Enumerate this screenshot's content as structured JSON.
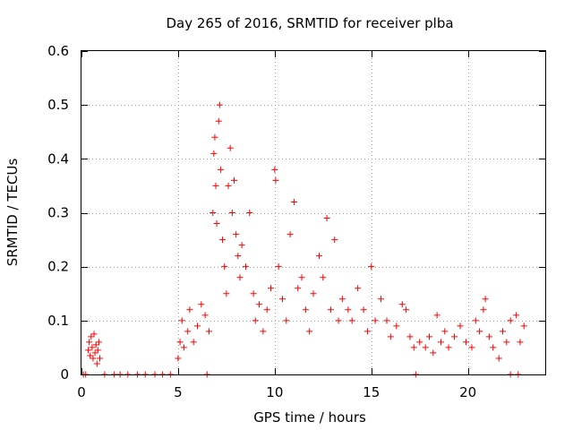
{
  "chart_data": {
    "type": "scatter",
    "title": "Day 265 of 2016, SRMTID for receiver plba",
    "xlabel": "GPS time / hours",
    "ylabel": "SRMTID / TECUs",
    "xlim": [
      0,
      24
    ],
    "ylim": [
      0,
      0.6
    ],
    "grid": true,
    "marker": "+",
    "color": "#ff0000",
    "x_ticks": [
      0,
      5,
      10,
      15,
      20
    ],
    "x_tick_labels": [
      "0",
      "5",
      "10",
      "15",
      "20"
    ],
    "y_ticks": [
      0,
      0.1,
      0.2,
      0.3,
      0.4,
      0.5,
      0.6
    ],
    "y_tick_labels": [
      "0",
      "0.1",
      "0.2",
      "0.3",
      "0.4",
      "0.5",
      "0.6"
    ],
    "series": [
      {
        "name": "SRMTID",
        "points": [
          [
            0.1,
            0
          ],
          [
            0.22,
            0
          ],
          [
            0.35,
            0.045
          ],
          [
            0.4,
            0.06
          ],
          [
            0.45,
            0.035
          ],
          [
            0.5,
            0.07
          ],
          [
            0.55,
            0.05
          ],
          [
            0.6,
            0.03
          ],
          [
            0.65,
            0.075
          ],
          [
            0.7,
            0.04
          ],
          [
            0.75,
            0.055
          ],
          [
            0.8,
            0.02
          ],
          [
            0.85,
            0.045
          ],
          [
            0.9,
            0.06
          ],
          [
            0.95,
            0.03
          ],
          [
            1.2,
            0
          ],
          [
            1.7,
            0
          ],
          [
            2.0,
            0
          ],
          [
            2.4,
            0
          ],
          [
            2.9,
            0
          ],
          [
            3.3,
            0
          ],
          [
            3.8,
            0
          ],
          [
            4.2,
            0
          ],
          [
            4.6,
            0
          ],
          [
            5.0,
            0.03
          ],
          [
            5.1,
            0.06
          ],
          [
            5.2,
            0.1
          ],
          [
            5.3,
            0.05
          ],
          [
            5.5,
            0.08
          ],
          [
            5.6,
            0.12
          ],
          [
            5.8,
            0.06
          ],
          [
            6.0,
            0.09
          ],
          [
            6.2,
            0.13
          ],
          [
            6.4,
            0.11
          ],
          [
            6.6,
            0.08
          ],
          [
            6.5,
            0
          ],
          [
            6.8,
            0.3
          ],
          [
            6.85,
            0.41
          ],
          [
            6.9,
            0.44
          ],
          [
            6.95,
            0.35
          ],
          [
            7.0,
            0.28
          ],
          [
            7.1,
            0.47
          ],
          [
            7.15,
            0.5
          ],
          [
            7.2,
            0.38
          ],
          [
            7.3,
            0.25
          ],
          [
            7.4,
            0.2
          ],
          [
            7.5,
            0.15
          ],
          [
            7.6,
            0.35
          ],
          [
            7.7,
            0.42
          ],
          [
            7.8,
            0.3
          ],
          [
            7.9,
            0.36
          ],
          [
            8.0,
            0.26
          ],
          [
            8.1,
            0.22
          ],
          [
            8.2,
            0.18
          ],
          [
            8.3,
            0.24
          ],
          [
            8.5,
            0.2
          ],
          [
            8.7,
            0.3
          ],
          [
            8.9,
            0.15
          ],
          [
            9.0,
            0.1
          ],
          [
            9.2,
            0.13
          ],
          [
            9.4,
            0.08
          ],
          [
            9.6,
            0.12
          ],
          [
            9.8,
            0.16
          ],
          [
            10.0,
            0.38
          ],
          [
            10.05,
            0.36
          ],
          [
            10.2,
            0.2
          ],
          [
            10.4,
            0.14
          ],
          [
            10.6,
            0.1
          ],
          [
            10.8,
            0.26
          ],
          [
            11.0,
            0.32
          ],
          [
            11.2,
            0.16
          ],
          [
            11.4,
            0.18
          ],
          [
            11.6,
            0.12
          ],
          [
            11.8,
            0.08
          ],
          [
            12.0,
            0.15
          ],
          [
            12.3,
            0.22
          ],
          [
            12.5,
            0.18
          ],
          [
            12.7,
            0.29
          ],
          [
            12.9,
            0.12
          ],
          [
            13.1,
            0.25
          ],
          [
            13.3,
            0.1
          ],
          [
            13.5,
            0.14
          ],
          [
            13.8,
            0.12
          ],
          [
            14.0,
            0.1
          ],
          [
            14.3,
            0.16
          ],
          [
            14.6,
            0.12
          ],
          [
            14.8,
            0.08
          ],
          [
            15.0,
            0.2
          ],
          [
            15.2,
            0.1
          ],
          [
            15.5,
            0.14
          ],
          [
            15.8,
            0.1
          ],
          [
            16.0,
            0.07
          ],
          [
            16.3,
            0.09
          ],
          [
            16.6,
            0.13
          ],
          [
            16.8,
            0.12
          ],
          [
            17.0,
            0.07
          ],
          [
            17.2,
            0.05
          ],
          [
            17.5,
            0.06
          ],
          [
            17.3,
            0
          ],
          [
            17.8,
            0.05
          ],
          [
            18.0,
            0.07
          ],
          [
            18.2,
            0.04
          ],
          [
            18.4,
            0.11
          ],
          [
            18.6,
            0.06
          ],
          [
            18.8,
            0.08
          ],
          [
            19.0,
            0.05
          ],
          [
            19.3,
            0.07
          ],
          [
            19.6,
            0.09
          ],
          [
            19.9,
            0.06
          ],
          [
            20.2,
            0.05
          ],
          [
            20.4,
            0.1
          ],
          [
            20.6,
            0.08
          ],
          [
            20.8,
            0.12
          ],
          [
            20.9,
            0.14
          ],
          [
            21.1,
            0.07
          ],
          [
            21.3,
            0.05
          ],
          [
            21.6,
            0.03
          ],
          [
            21.8,
            0.08
          ],
          [
            22.0,
            0.06
          ],
          [
            22.2,
            0.1
          ],
          [
            22.5,
            0.11
          ],
          [
            22.7,
            0.06
          ],
          [
            22.9,
            0.09
          ],
          [
            22.2,
            0
          ],
          [
            22.6,
            0
          ]
        ]
      }
    ]
  }
}
